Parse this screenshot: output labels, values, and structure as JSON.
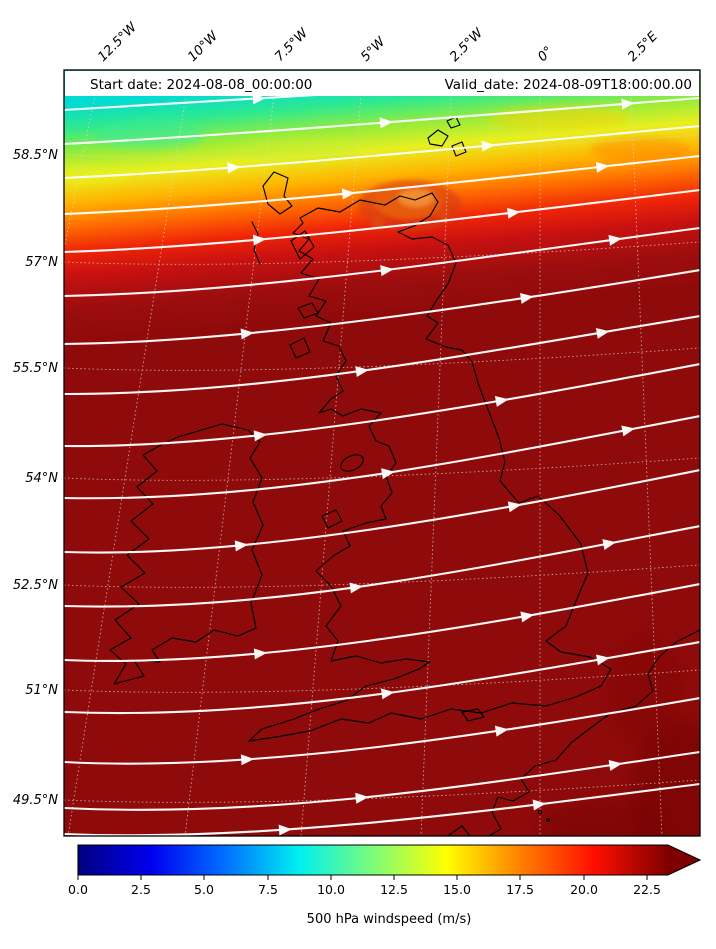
{
  "figure": {
    "banner": {
      "start_date_label": "Start date: 2024-08-08_00:00:00",
      "valid_date_label": "Valid_date: 2024-08-09T18:00:00.00"
    },
    "axes": {
      "top_lon_labels": [
        "12.5°W",
        "10°W",
        "7.5°W",
        "5°W",
        "2.5°W",
        "0°",
        "2.5°E"
      ],
      "left_lat_labels": [
        "58.5°N",
        "57°N",
        "55.5°N",
        "54°N",
        "52.5°N",
        "51°N",
        "49.5°N"
      ]
    },
    "colorbar": {
      "tick_labels": [
        "0.0",
        "2.5",
        "5.0",
        "7.5",
        "10.0",
        "12.5",
        "15.0",
        "17.5",
        "20.0",
        "22.5"
      ],
      "label": "500 hPa windspeed (m/s)"
    },
    "colors": {
      "max_windspeed_fill": "#8f0a0a",
      "streamline": "#ffffff",
      "coastline": "#000000",
      "banner_bg": "#ffffff"
    }
  },
  "chart_data": {
    "type": "heatmap",
    "title": "500 hPa windspeed forecast map over UK and Ireland",
    "variable": "500 hPa windspeed",
    "units": "m/s",
    "start_date": "2024-08-08_00:00:00",
    "valid_date": "2024-08-09T18:00:00.00",
    "colormap": "jet",
    "colorbar_ticks": [
      0.0,
      2.5,
      5.0,
      7.5,
      10.0,
      12.5,
      15.0,
      17.5,
      20.0,
      22.5
    ],
    "colorbar_extends_above_max": true,
    "lon_gridlines_deg": [
      -12.5,
      -10,
      -7.5,
      -5,
      -2.5,
      0,
      2.5
    ],
    "lat_gridlines_deg": [
      58.5,
      57,
      55.5,
      54,
      52.5,
      51,
      49.5
    ],
    "field_values": [
      {
        "region": "most of domain south of ~58.5°N (UK, Ireland and surrounding seas)",
        "windspeed_ms": ">22.5 (off-scale dark red)"
      },
      {
        "region": "band ~58.3-58.8°N",
        "windspeed_ms": "20-22.5 (orange to red)"
      },
      {
        "region": "band ~58.8-59.2°N",
        "windspeed_ms": "15-20 (yellow to orange)"
      },
      {
        "region": "northern edge ~59.2-59.6°N",
        "windspeed_ms": "12.5-15 (cyan to green)"
      },
      {
        "region": "local patch north of Scottish mainland (~58.2°N, 3-5°W)",
        "windspeed_ms": "~20 (orange)"
      }
    ],
    "streamlines": {
      "color": "white",
      "flow": "west-southwest to east-northeast across the whole domain",
      "arrow_direction": "eastward"
    }
  }
}
